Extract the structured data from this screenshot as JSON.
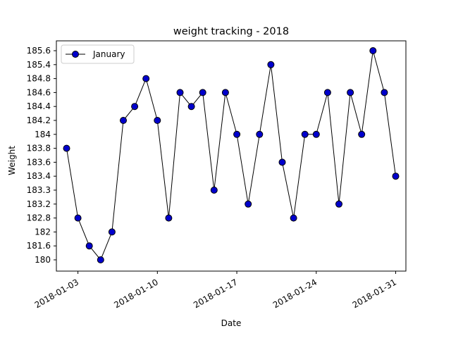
{
  "chart_data": {
    "type": "line",
    "title": "weight tracking - 2018",
    "xlabel": "Date",
    "ylabel": "Weight",
    "y_scale": "categorical",
    "y_categories": [
      "180",
      "181.6",
      "182",
      "182.8",
      "183.2",
      "183.3",
      "183.4",
      "183.6",
      "183.8",
      "184",
      "184.2",
      "184.4",
      "184.6",
      "184.8",
      "185.4",
      "185.6"
    ],
    "x_tick_labels": [
      "2018-01-03",
      "2018-01-10",
      "2018-01-17",
      "2018-01-24",
      "2018-01-31"
    ],
    "x_tick_days": [
      3,
      10,
      17,
      24,
      31
    ],
    "xlim_days": [
      1.1,
      31.9
    ],
    "legend": {
      "position": "top-left",
      "entries": [
        "January"
      ]
    },
    "series": [
      {
        "name": "January",
        "color": "#000000",
        "marker_color": "#0000cc",
        "x_days": [
          2,
          3,
          4,
          5,
          6,
          7,
          8,
          9,
          10,
          11,
          12,
          13,
          14,
          15,
          16,
          17,
          18,
          19,
          20,
          21,
          22,
          23,
          24,
          25,
          26,
          27,
          28,
          29,
          30,
          31
        ],
        "values": [
          "183.8",
          "182.8",
          "181.6",
          "180",
          "182",
          "184.2",
          "184.4",
          "184.8",
          "184.2",
          "182.8",
          "184.6",
          "184.4",
          "184.6",
          "183.3",
          "184.6",
          "184",
          "183.2",
          "184",
          "185.4",
          "183.6",
          "182.8",
          "184",
          "184",
          "184.6",
          "183.2",
          "184.6",
          "184",
          "185.6",
          "184.6",
          "183.4"
        ]
      }
    ]
  }
}
